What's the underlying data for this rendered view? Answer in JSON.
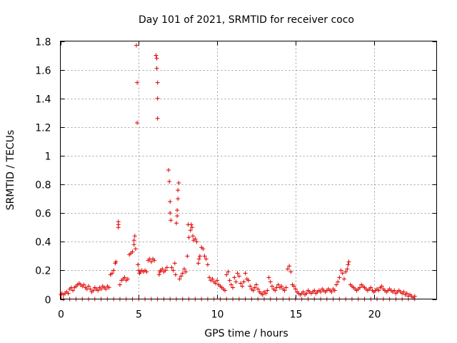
{
  "chart_data": {
    "type": "scatter",
    "title": "Day 101 of 2021, SRMTID for receiver coco",
    "xlabel": "GPS time / hours",
    "ylabel": "SRMTID / TECUs",
    "xlim": [
      0,
      24
    ],
    "ylim": [
      0,
      1.8
    ],
    "xticks": [
      0,
      5,
      10,
      15,
      20
    ],
    "xtick_labels": [
      "0",
      "5",
      "10",
      "15",
      "20"
    ],
    "yticks": [
      0,
      0.2,
      0.4,
      0.6,
      0.8,
      1.0,
      1.2,
      1.4,
      1.6,
      1.8
    ],
    "ytick_labels": [
      "0",
      "0.2",
      "0.4",
      "0.6",
      "0.8",
      "1",
      "1.2",
      "1.4",
      "1.6",
      "1.8"
    ],
    "grid": true,
    "marker": "+",
    "color": "#e00000",
    "series": [
      {
        "name": "SRMTID",
        "points": [
          [
            0.05,
            0.03
          ],
          [
            0.1,
            0.04
          ],
          [
            0.2,
            0.03
          ],
          [
            0.3,
            0.04
          ],
          [
            0.4,
            0.05
          ],
          [
            0.5,
            0.04
          ],
          [
            0.6,
            0.07
          ],
          [
            0.7,
            0.08
          ],
          [
            0.8,
            0.06
          ],
          [
            0.9,
            0.08
          ],
          [
            1.0,
            0.09
          ],
          [
            1.1,
            0.1
          ],
          [
            1.2,
            0.11
          ],
          [
            1.3,
            0.1
          ],
          [
            1.4,
            0.09
          ],
          [
            1.5,
            0.1
          ],
          [
            1.6,
            0.08
          ],
          [
            1.7,
            0.07
          ],
          [
            1.8,
            0.09
          ],
          [
            1.9,
            0.07
          ],
          [
            2.0,
            0.05
          ],
          [
            2.1,
            0.06
          ],
          [
            2.2,
            0.08
          ],
          [
            2.3,
            0.07
          ],
          [
            2.4,
            0.06
          ],
          [
            2.5,
            0.08
          ],
          [
            2.6,
            0.07
          ],
          [
            2.7,
            0.09
          ],
          [
            2.8,
            0.08
          ],
          [
            2.9,
            0.07
          ],
          [
            3.0,
            0.09
          ],
          [
            3.1,
            0.08
          ],
          [
            3.2,
            0.17
          ],
          [
            3.3,
            0.18
          ],
          [
            3.4,
            0.2
          ],
          [
            3.5,
            0.25
          ],
          [
            3.55,
            0.26
          ],
          [
            3.7,
            0.5
          ],
          [
            3.7,
            0.52
          ],
          [
            3.7,
            0.54
          ],
          [
            3.8,
            0.1
          ],
          [
            3.9,
            0.13
          ],
          [
            4.0,
            0.14
          ],
          [
            4.1,
            0.15
          ],
          [
            4.2,
            0.13
          ],
          [
            4.3,
            0.14
          ],
          [
            4.4,
            0.31
          ],
          [
            4.5,
            0.32
          ],
          [
            4.6,
            0.33
          ],
          [
            4.7,
            0.38
          ],
          [
            4.7,
            0.41
          ],
          [
            4.75,
            0.44
          ],
          [
            4.8,
            0.35
          ],
          [
            4.85,
            1.77
          ],
          [
            4.9,
            1.51
          ],
          [
            4.9,
            1.23
          ],
          [
            4.95,
            0.24
          ],
          [
            5.0,
            0.2
          ],
          [
            5.05,
            0.18
          ],
          [
            5.1,
            0.19
          ],
          [
            5.2,
            0.2
          ],
          [
            5.3,
            0.19
          ],
          [
            5.4,
            0.2
          ],
          [
            5.5,
            0.19
          ],
          [
            5.6,
            0.27
          ],
          [
            5.7,
            0.28
          ],
          [
            5.8,
            0.26
          ],
          [
            5.9,
            0.28
          ],
          [
            6.0,
            0.27
          ],
          [
            6.1,
            1.7
          ],
          [
            6.15,
            1.68
          ],
          [
            6.15,
            1.61
          ],
          [
            6.2,
            1.51
          ],
          [
            6.2,
            1.4
          ],
          [
            6.2,
            1.26
          ],
          [
            6.3,
            0.17
          ],
          [
            6.35,
            0.19
          ],
          [
            6.4,
            0.2
          ],
          [
            6.5,
            0.21
          ],
          [
            6.6,
            0.19
          ],
          [
            6.7,
            0.2
          ],
          [
            6.8,
            0.22
          ],
          [
            6.9,
            0.9
          ],
          [
            6.95,
            0.82
          ],
          [
            7.0,
            0.68
          ],
          [
            7.0,
            0.6
          ],
          [
            7.05,
            0.55
          ],
          [
            7.1,
            0.22
          ],
          [
            7.2,
            0.2
          ],
          [
            7.3,
            0.25
          ],
          [
            7.35,
            0.17
          ],
          [
            7.4,
            0.53
          ],
          [
            7.45,
            0.58
          ],
          [
            7.45,
            0.62
          ],
          [
            7.5,
            0.7
          ],
          [
            7.5,
            0.76
          ],
          [
            7.55,
            0.81
          ],
          [
            7.6,
            0.14
          ],
          [
            7.7,
            0.16
          ],
          [
            7.8,
            0.18
          ],
          [
            7.9,
            0.21
          ],
          [
            8.0,
            0.19
          ],
          [
            8.1,
            0.3
          ],
          [
            8.15,
            0.52
          ],
          [
            8.2,
            0.43
          ],
          [
            8.3,
            0.48
          ],
          [
            8.35,
            0.52
          ],
          [
            8.4,
            0.5
          ],
          [
            8.45,
            0.44
          ],
          [
            8.5,
            0.41
          ],
          [
            8.6,
            0.42
          ],
          [
            8.7,
            0.4
          ],
          [
            8.8,
            0.25
          ],
          [
            8.85,
            0.28
          ],
          [
            8.9,
            0.3
          ],
          [
            9.0,
            0.36
          ],
          [
            9.1,
            0.35
          ],
          [
            9.2,
            0.3
          ],
          [
            9.3,
            0.28
          ],
          [
            9.4,
            0.24
          ],
          [
            9.5,
            0.15
          ],
          [
            9.6,
            0.13
          ],
          [
            9.7,
            0.14
          ],
          [
            9.8,
            0.12
          ],
          [
            9.9,
            0.11
          ],
          [
            10.0,
            0.13
          ],
          [
            10.1,
            0.1
          ],
          [
            10.2,
            0.09
          ],
          [
            10.3,
            0.08
          ],
          [
            10.4,
            0.07
          ],
          [
            10.5,
            0.06
          ],
          [
            10.6,
            0.17
          ],
          [
            10.7,
            0.19
          ],
          [
            10.8,
            0.13
          ],
          [
            10.9,
            0.1
          ],
          [
            11.0,
            0.08
          ],
          [
            11.1,
            0.15
          ],
          [
            11.2,
            0.12
          ],
          [
            11.3,
            0.18
          ],
          [
            11.4,
            0.16
          ],
          [
            11.5,
            0.11
          ],
          [
            11.6,
            0.09
          ],
          [
            11.7,
            0.12
          ],
          [
            11.8,
            0.18
          ],
          [
            11.9,
            0.14
          ],
          [
            12.0,
            0.13
          ],
          [
            12.1,
            0.09
          ],
          [
            12.2,
            0.07
          ],
          [
            12.3,
            0.06
          ],
          [
            12.4,
            0.08
          ],
          [
            12.5,
            0.1
          ],
          [
            12.6,
            0.07
          ],
          [
            12.7,
            0.05
          ],
          [
            12.8,
            0.04
          ],
          [
            12.9,
            0.03
          ],
          [
            13.0,
            0.05
          ],
          [
            13.1,
            0.04
          ],
          [
            13.2,
            0.06
          ],
          [
            13.3,
            0.15
          ],
          [
            13.4,
            0.12
          ],
          [
            13.5,
            0.09
          ],
          [
            13.6,
            0.07
          ],
          [
            13.7,
            0.06
          ],
          [
            13.8,
            0.08
          ],
          [
            13.9,
            0.1
          ],
          [
            14.0,
            0.08
          ],
          [
            14.1,
            0.09
          ],
          [
            14.2,
            0.07
          ],
          [
            14.3,
            0.06
          ],
          [
            14.4,
            0.08
          ],
          [
            14.5,
            0.21
          ],
          [
            14.6,
            0.23
          ],
          [
            14.7,
            0.19
          ],
          [
            14.8,
            0.1
          ],
          [
            14.9,
            0.09
          ],
          [
            15.0,
            0.07
          ],
          [
            15.1,
            0.05
          ],
          [
            15.2,
            0.04
          ],
          [
            15.3,
            0.03
          ],
          [
            15.4,
            0.04
          ],
          [
            15.5,
            0.05
          ],
          [
            15.6,
            0.03
          ],
          [
            15.7,
            0.04
          ],
          [
            15.8,
            0.06
          ],
          [
            15.9,
            0.05
          ],
          [
            16.0,
            0.04
          ],
          [
            16.1,
            0.05
          ],
          [
            16.2,
            0.06
          ],
          [
            16.3,
            0.04
          ],
          [
            16.4,
            0.05
          ],
          [
            16.5,
            0.06
          ],
          [
            16.6,
            0.05
          ],
          [
            16.7,
            0.07
          ],
          [
            16.8,
            0.06
          ],
          [
            16.9,
            0.05
          ],
          [
            17.0,
            0.06
          ],
          [
            17.1,
            0.07
          ],
          [
            17.2,
            0.06
          ],
          [
            17.3,
            0.05
          ],
          [
            17.4,
            0.07
          ],
          [
            17.5,
            0.06
          ],
          [
            17.6,
            0.1
          ],
          [
            17.7,
            0.12
          ],
          [
            17.8,
            0.15
          ],
          [
            17.9,
            0.2
          ],
          [
            18.0,
            0.18
          ],
          [
            18.1,
            0.14
          ],
          [
            18.2,
            0.19
          ],
          [
            18.3,
            0.21
          ],
          [
            18.35,
            0.24
          ],
          [
            18.4,
            0.26
          ],
          [
            18.5,
            0.1
          ],
          [
            18.6,
            0.09
          ],
          [
            18.7,
            0.08
          ],
          [
            18.8,
            0.07
          ],
          [
            18.9,
            0.06
          ],
          [
            19.0,
            0.07
          ],
          [
            19.1,
            0.08
          ],
          [
            19.2,
            0.1
          ],
          [
            19.3,
            0.09
          ],
          [
            19.4,
            0.08
          ],
          [
            19.5,
            0.07
          ],
          [
            19.6,
            0.06
          ],
          [
            19.7,
            0.07
          ],
          [
            19.8,
            0.08
          ],
          [
            19.9,
            0.06
          ],
          [
            20.0,
            0.05
          ],
          [
            20.1,
            0.06
          ],
          [
            20.2,
            0.07
          ],
          [
            20.3,
            0.06
          ],
          [
            20.4,
            0.08
          ],
          [
            20.5,
            0.09
          ],
          [
            20.6,
            0.07
          ],
          [
            20.7,
            0.06
          ],
          [
            20.8,
            0.05
          ],
          [
            20.9,
            0.06
          ],
          [
            21.0,
            0.07
          ],
          [
            21.1,
            0.06
          ],
          [
            21.2,
            0.05
          ],
          [
            21.3,
            0.06
          ],
          [
            21.4,
            0.04
          ],
          [
            21.5,
            0.05
          ],
          [
            21.6,
            0.06
          ],
          [
            21.7,
            0.05
          ],
          [
            21.8,
            0.04
          ],
          [
            21.9,
            0.05
          ],
          [
            22.0,
            0.03
          ],
          [
            22.1,
            0.04
          ],
          [
            22.2,
            0.02
          ],
          [
            22.3,
            0.03
          ],
          [
            22.4,
            0.02
          ],
          [
            22.5,
            0.01
          ],
          [
            22.6,
            0.02
          ],
          [
            0.2,
            0.0
          ],
          [
            0.6,
            0.0
          ],
          [
            1.0,
            0.0
          ],
          [
            1.4,
            0.0
          ],
          [
            1.8,
            0.0
          ],
          [
            2.2,
            0.0
          ],
          [
            2.6,
            0.0
          ],
          [
            3.0,
            0.0
          ],
          [
            3.4,
            0.0
          ],
          [
            3.8,
            0.0
          ],
          [
            4.2,
            0.0
          ],
          [
            4.6,
            0.0
          ],
          [
            5.0,
            0.0
          ],
          [
            5.4,
            0.0
          ],
          [
            5.8,
            0.0
          ],
          [
            6.2,
            0.0
          ],
          [
            6.6,
            0.0
          ],
          [
            7.0,
            0.0
          ],
          [
            7.4,
            0.0
          ],
          [
            7.8,
            0.0
          ],
          [
            8.2,
            0.0
          ],
          [
            8.6,
            0.0
          ],
          [
            9.0,
            0.0
          ],
          [
            9.4,
            0.0
          ],
          [
            9.8,
            0.0
          ],
          [
            10.2,
            0.0
          ],
          [
            10.6,
            0.0
          ],
          [
            11.0,
            0.0
          ],
          [
            11.4,
            0.0
          ],
          [
            11.8,
            0.0
          ],
          [
            12.2,
            0.0
          ],
          [
            12.6,
            0.0
          ],
          [
            13.0,
            0.0
          ],
          [
            13.4,
            0.0
          ],
          [
            13.8,
            0.0
          ],
          [
            14.2,
            0.0
          ],
          [
            14.6,
            0.0
          ],
          [
            15.0,
            0.0
          ],
          [
            15.4,
            0.0
          ],
          [
            15.8,
            0.0
          ],
          [
            16.2,
            0.0
          ],
          [
            16.6,
            0.0
          ],
          [
            17.0,
            0.0
          ],
          [
            17.4,
            0.0
          ],
          [
            17.8,
            0.0
          ],
          [
            18.2,
            0.0
          ],
          [
            18.6,
            0.0
          ],
          [
            19.0,
            0.0
          ],
          [
            19.4,
            0.0
          ],
          [
            19.8,
            0.0
          ],
          [
            20.2,
            0.0
          ],
          [
            20.6,
            0.0
          ],
          [
            21.0,
            0.0
          ],
          [
            21.4,
            0.0
          ],
          [
            21.8,
            0.0
          ],
          [
            22.2,
            0.0
          ],
          [
            22.6,
            0.0
          ]
        ]
      }
    ]
  }
}
